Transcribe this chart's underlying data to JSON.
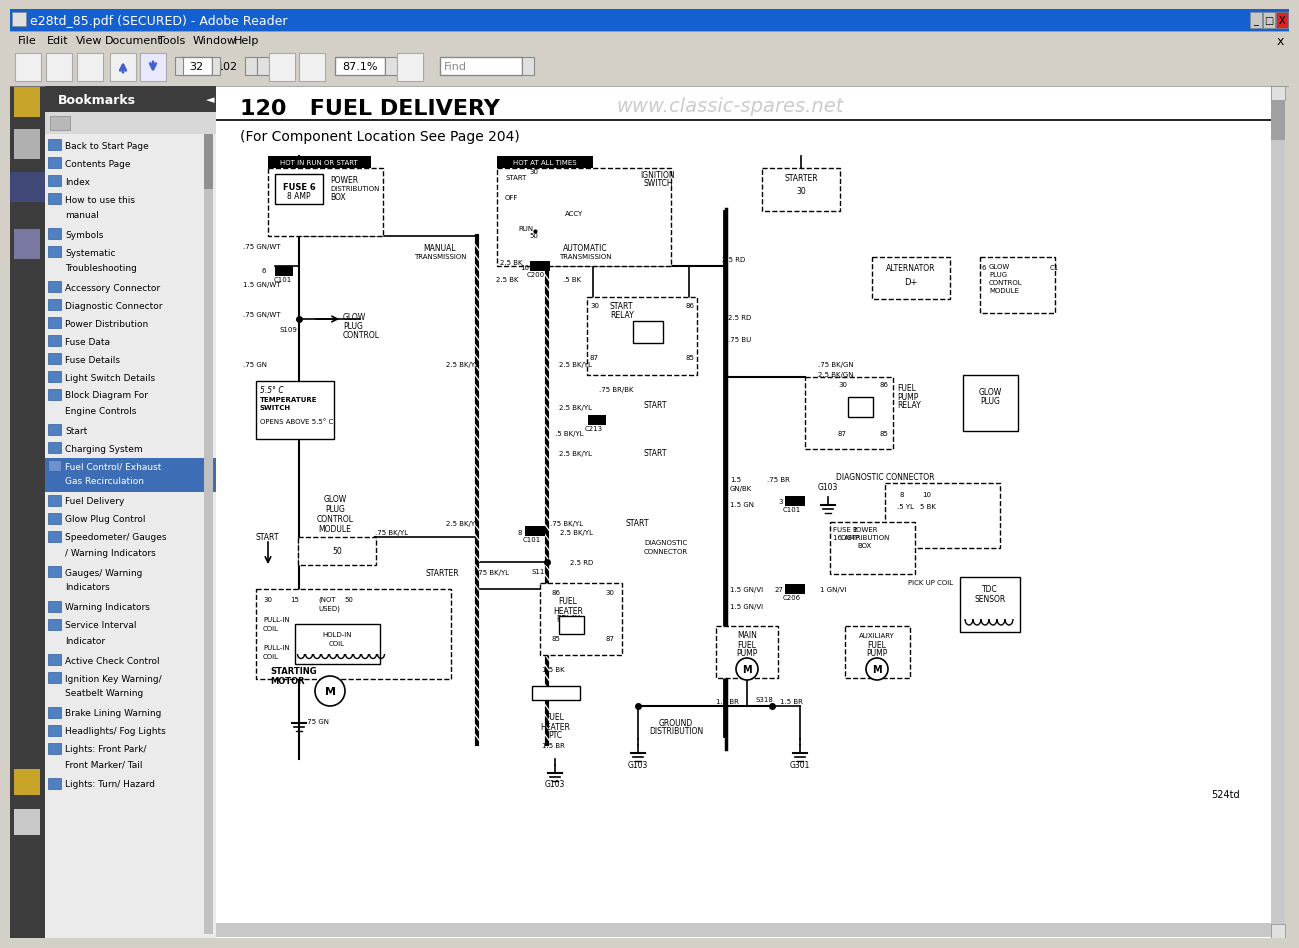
{
  "title_bar": "e28td_85.pdf (SECURED) - Adobe Reader",
  "title_bar_color": "#1560d0",
  "bg_color": "#d4d0c8",
  "sidebar_dark": "#3a3a3a",
  "sidebar_light": "#ebebeb",
  "bookmark_items": [
    "Back to Start Page",
    "Contents Page",
    "Index",
    "How to use this\nmanual",
    "Symbols",
    "Systematic\nTroubleshooting",
    "Accessory Connector",
    "Diagnostic Connector",
    "Power Distribution",
    "Fuse Data",
    "Fuse Details",
    "Light Switch Details",
    "Block Diagram For\nEngine Controls",
    "Start",
    "Charging System",
    "Fuel Control/ Exhaust\nGas Recirculation",
    "Fuel Delivery",
    "Glow Plug Control",
    "Speedometer/ Gauges\n/ Warning Indicators",
    "Gauges/ Warning\nIndicators",
    "Warning Indicators",
    "Service Interval\nIndicator",
    "Active Check Control",
    "Ignition Key Warning/\nSeatbelt Warning",
    "Brake Lining Warning",
    "Headlights/ Fog Lights",
    "Lights: Front Park/\nFront Marker/ Tail",
    "Lights: Turn/ Hazard"
  ],
  "highlighted_item_index": 15,
  "page_title": "120   FUEL DELIVERY",
  "page_subtitle": "(For Component Location See Page 204)",
  "watermark": "www.classic-spares.net",
  "page_number": "32",
  "total_pages": "102",
  "zoom_level": "87.1%",
  "footer_text": "524td"
}
